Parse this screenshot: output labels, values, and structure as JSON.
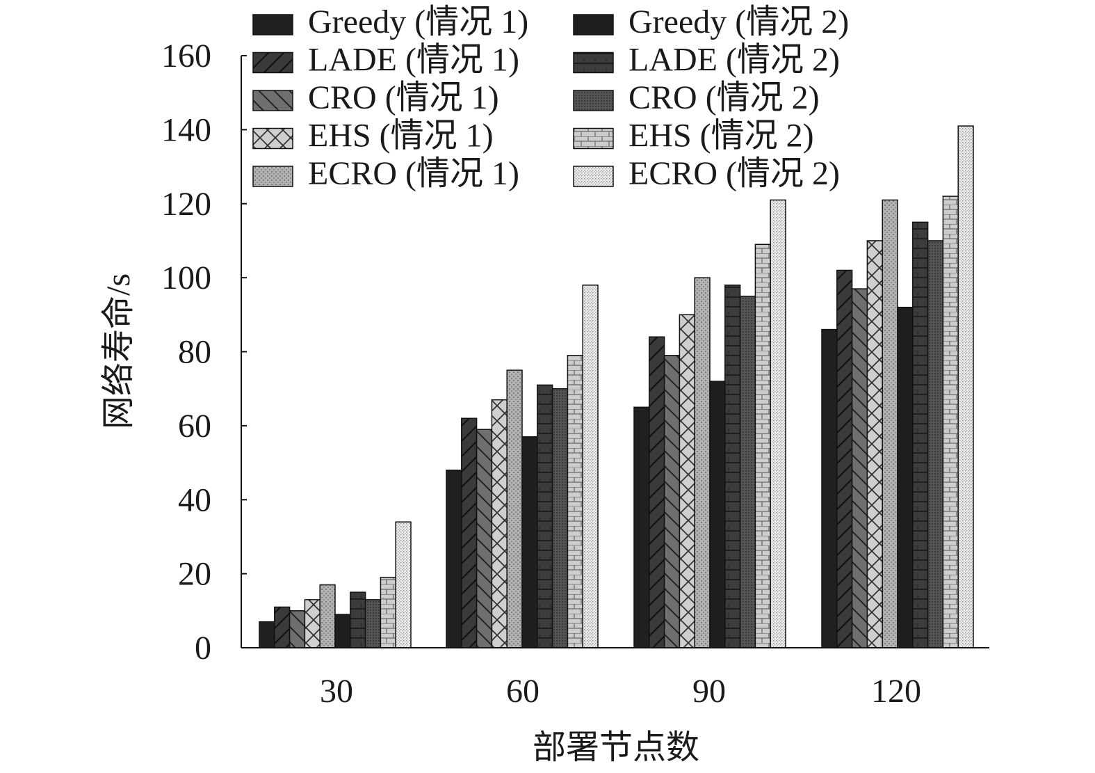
{
  "chart_data": {
    "type": "bar",
    "title": "",
    "xlabel": "部署节点数",
    "ylabel": "网络寿命/s",
    "categories": [
      "30",
      "60",
      "90",
      "120"
    ],
    "ylim": [
      0,
      160
    ],
    "yticks": [
      "0",
      "20",
      "40",
      "60",
      "80",
      "100",
      "120",
      "140",
      "160"
    ],
    "grid": false,
    "legend_position": "top",
    "series": [
      {
        "name": "Greedy (情况 1)",
        "values": [
          7,
          48,
          65,
          86
        ],
        "color": "#202020",
        "pattern": "solid"
      },
      {
        "name": "LADE (情况 1)",
        "values": [
          11,
          62,
          84,
          102
        ],
        "color": "#3a3a3a",
        "pattern": "diag-up"
      },
      {
        "name": "CRO (情况 1)",
        "values": [
          10,
          59,
          79,
          97
        ],
        "color": "#6f6f6f",
        "pattern": "diag-down"
      },
      {
        "name": "EHS (情况 1)",
        "values": [
          13,
          67,
          90,
          110
        ],
        "color": "#c4c4c4",
        "pattern": "cross"
      },
      {
        "name": "ECRO (情况 1)",
        "values": [
          17,
          75,
          100,
          121
        ],
        "color": "#a5a5a5",
        "pattern": "dots"
      },
      {
        "name": "Greedy (情况 2)",
        "values": [
          9,
          57,
          72,
          92
        ],
        "color": "#1e1e1e",
        "pattern": "solid"
      },
      {
        "name": "LADE (情况 2)",
        "values": [
          15,
          71,
          98,
          115
        ],
        "color": "#3c3c3c",
        "pattern": "hlines"
      },
      {
        "name": "CRO (情况 2)",
        "values": [
          13,
          70,
          95,
          110
        ],
        "color": "#4d4d4d",
        "pattern": "fine"
      },
      {
        "name": "EHS (情况 2)",
        "values": [
          19,
          79,
          109,
          122
        ],
        "color": "#c8c8c8",
        "pattern": "bricks"
      },
      {
        "name": "ECRO (情况 2)",
        "values": [
          34,
          98,
          121,
          141
        ],
        "color": "#e4e4e4",
        "pattern": "finedots"
      }
    ]
  }
}
